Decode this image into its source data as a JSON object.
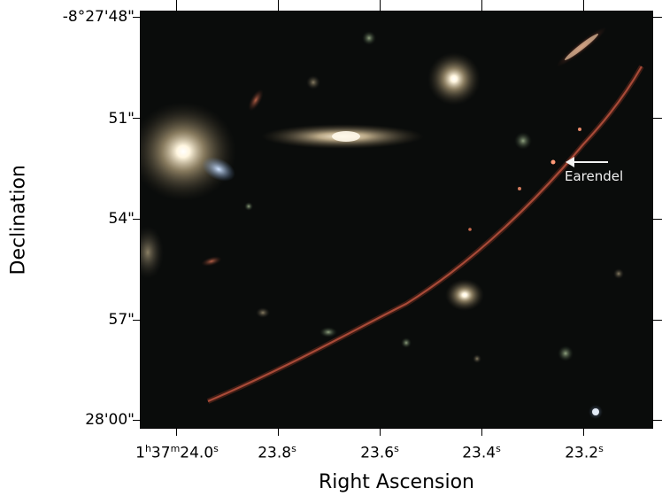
{
  "image": {
    "subject": "Galaxy cluster field with lensed arc",
    "annotation": {
      "label": "Earendel",
      "arrow": "left-pointing-arrow-icon"
    }
  },
  "axes": {
    "x_title": "Right Ascension",
    "y_title": "Declination",
    "x_ticks": [
      {
        "h": "1",
        "hs": "h",
        "m": "37",
        "ms": "m",
        "s": "24.0",
        "ss": "s"
      },
      {
        "s": "23.8",
        "ss": "s"
      },
      {
        "s": "23.6",
        "ss": "s"
      },
      {
        "s": "23.4",
        "ss": "s"
      },
      {
        "s": "23.2",
        "ss": "s"
      }
    ],
    "y_ticks": [
      "-8°27'48\"",
      "51\"",
      "54\"",
      "57\"",
      "28'00\""
    ]
  },
  "colors": {
    "background": "#0a0c0b",
    "arc": "#b4503c",
    "galaxy_core": "#fff6e0",
    "annotation": "#f2f2f2"
  }
}
